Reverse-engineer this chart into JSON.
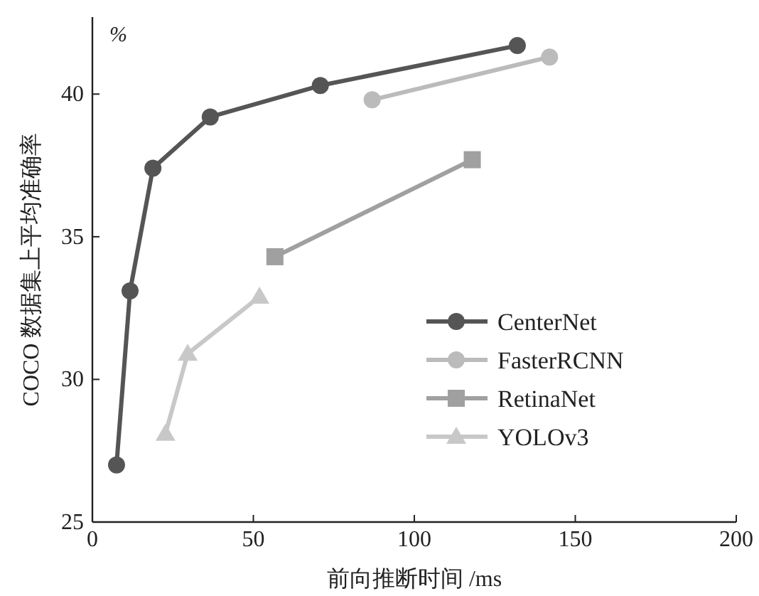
{
  "chart_data": {
    "type": "line",
    "xlabel": "前向推断时间 /ms",
    "ylabel": "COCO 数据集上平均准确率",
    "annotations": [
      "%"
    ],
    "xlim": [
      0,
      200
    ],
    "xticks": [
      0,
      50,
      100,
      150,
      200
    ],
    "ylim": [
      25,
      42.7
    ],
    "yticks": [
      25,
      30,
      35,
      40
    ],
    "grid": false,
    "legend": "bottom right",
    "line_style": "solid",
    "series": [
      {
        "name": "CenterNet",
        "color": "#555555",
        "marker": "circle",
        "x": [
          7.5,
          11.7,
          18.8,
          36.6,
          70.8,
          132
        ],
        "values": [
          27.0,
          33.1,
          37.4,
          39.2,
          40.3,
          41.7
        ]
      },
      {
        "name": "FasterRCNN",
        "color": "#bbbbbb",
        "marker": "circle",
        "x": [
          86.9,
          142
        ],
        "values": [
          39.8,
          41.3
        ]
      },
      {
        "name": "RetinaNet",
        "color": "#a0a0a0",
        "marker": "square",
        "x": [
          56.7,
          118
        ],
        "values": [
          34.3,
          37.7
        ]
      },
      {
        "name": "YOLOv3",
        "color": "#c8c8c8",
        "marker": "triangle",
        "x": [
          22.7,
          29.6,
          51.9
        ],
        "values": [
          28.1,
          30.9,
          32.9
        ]
      }
    ]
  }
}
